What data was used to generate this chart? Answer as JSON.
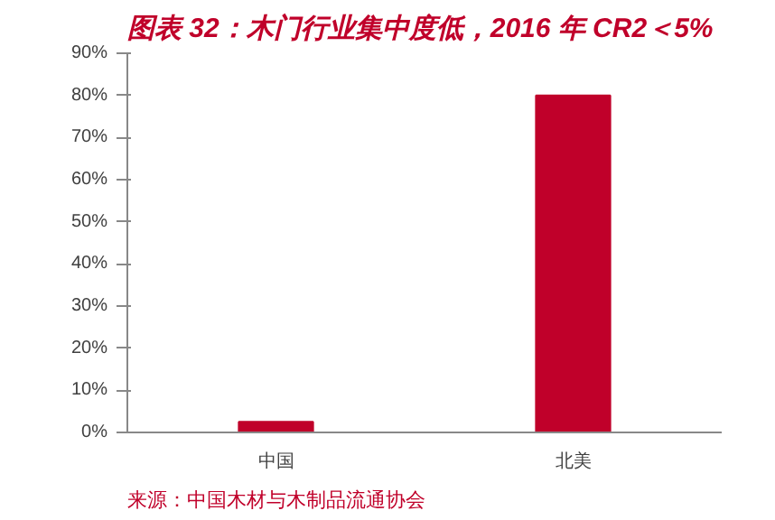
{
  "chart_data": {
    "type": "bar",
    "title": "图表 32：木门行业集中度低，2016 年 CR2＜5%",
    "categories": [
      "中国",
      "北美"
    ],
    "values": [
      2.5,
      80
    ],
    "color": "#c0002a",
    "ylim": [
      0,
      90
    ],
    "yticks": [
      {
        "value": 0,
        "label": "0%"
      },
      {
        "value": 10,
        "label": "10%"
      },
      {
        "value": 20,
        "label": "20%"
      },
      {
        "value": 30,
        "label": "30%"
      },
      {
        "value": 40,
        "label": "40%"
      },
      {
        "value": 50,
        "label": "50%"
      },
      {
        "value": 60,
        "label": "60%"
      },
      {
        "value": 70,
        "label": "70%"
      },
      {
        "value": 80,
        "label": "80%"
      },
      {
        "value": 90,
        "label": "90%"
      }
    ],
    "grid": false,
    "annotations": [
      "来源：中国木材与木制品流通协会"
    ]
  }
}
